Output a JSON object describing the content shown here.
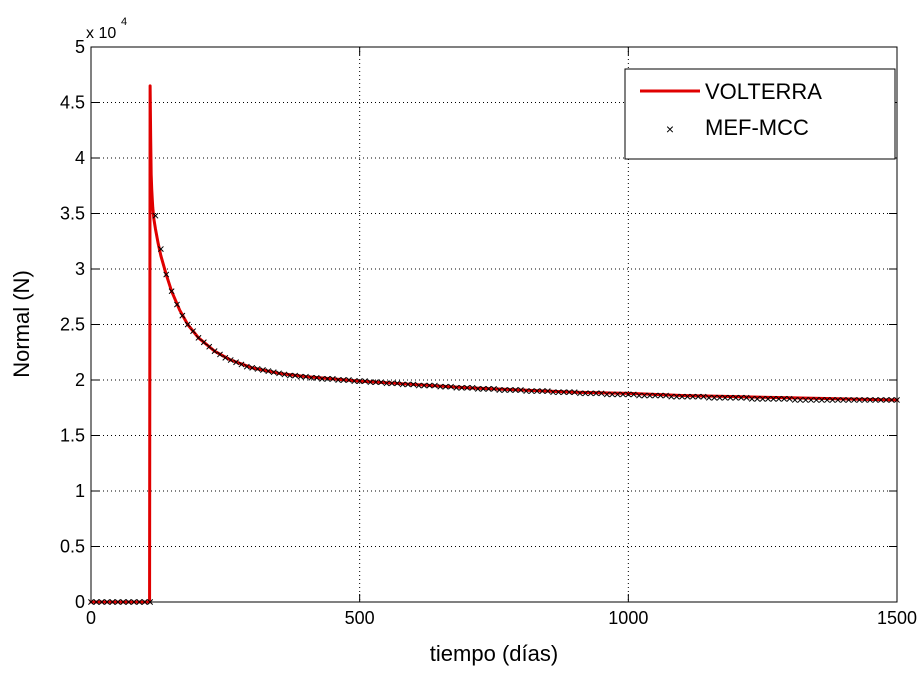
{
  "chart_data": {
    "type": "line",
    "xlabel": "tiempo (días)",
    "ylabel": "Normal (N)",
    "y_exponent": {
      "prefix": "x 10",
      "power": "4"
    },
    "xlim": [
      0,
      1500
    ],
    "ylim": [
      0,
      5
    ],
    "xticks": [
      0,
      500,
      1000,
      1500
    ],
    "yticks": [
      0,
      0.5,
      1,
      1.5,
      2,
      2.5,
      3,
      3.5,
      4,
      4.5,
      5
    ],
    "x_tick_labels": [
      "0",
      "500",
      "1000",
      "1500"
    ],
    "y_tick_labels": [
      "0",
      "0.5",
      "1",
      "1.5",
      "2",
      "2.5",
      "3",
      "3.5",
      "4",
      "4.5",
      "5"
    ],
    "grid": true,
    "legend_position": "top-right",
    "series": [
      {
        "name": "VOLTERRA",
        "style": "line",
        "color": "#e00000",
        "x": [
          0,
          109,
          110,
          111,
          112,
          113,
          114,
          115,
          117,
          120,
          125,
          130,
          140,
          150,
          165,
          180,
          200,
          230,
          260,
          300,
          350,
          400,
          450,
          500,
          600,
          700,
          800,
          900,
          1000,
          1100,
          1200,
          1300,
          1400,
          1500
        ],
        "y": [
          0,
          0,
          4.65,
          4.2,
          3.85,
          3.72,
          3.63,
          3.55,
          3.45,
          3.36,
          3.23,
          3.12,
          2.95,
          2.8,
          2.63,
          2.5,
          2.38,
          2.26,
          2.18,
          2.11,
          2.06,
          2.03,
          2.01,
          1.99,
          1.96,
          1.93,
          1.91,
          1.89,
          1.88,
          1.86,
          1.85,
          1.84,
          1.83,
          1.82
        ]
      },
      {
        "name": "MEF-MCC",
        "style": "markers",
        "marker": "x",
        "color": "#000000",
        "x": [
          0,
          10,
          20,
          30,
          40,
          50,
          60,
          70,
          80,
          90,
          100,
          110,
          120,
          130,
          140,
          150,
          160,
          170,
          180,
          190,
          200,
          210,
          220,
          230,
          240,
          250,
          260,
          270,
          280,
          290,
          300,
          310,
          320,
          330,
          340,
          350,
          360,
          370,
          380,
          390,
          400,
          410,
          420,
          430,
          440,
          450,
          460,
          470,
          480,
          490,
          500,
          510,
          520,
          530,
          540,
          550,
          560,
          570,
          580,
          590,
          600,
          610,
          620,
          630,
          640,
          650,
          660,
          670,
          680,
          690,
          700,
          710,
          720,
          730,
          740,
          750,
          760,
          770,
          780,
          790,
          800,
          810,
          820,
          830,
          840,
          850,
          860,
          870,
          880,
          890,
          900,
          910,
          920,
          930,
          940,
          950,
          960,
          970,
          980,
          990,
          1000,
          1010,
          1020,
          1030,
          1040,
          1050,
          1060,
          1070,
          1080,
          1090,
          1100,
          1110,
          1120,
          1130,
          1140,
          1150,
          1160,
          1170,
          1180,
          1190,
          1200,
          1210,
          1220,
          1230,
          1240,
          1250,
          1260,
          1270,
          1280,
          1290,
          1300,
          1310,
          1320,
          1330,
          1340,
          1350,
          1360,
          1370,
          1380,
          1390,
          1400,
          1410,
          1420,
          1430,
          1440,
          1450,
          1460,
          1470,
          1480,
          1490,
          1500
        ],
        "y": [
          0,
          0,
          0,
          0,
          0,
          0,
          0,
          0,
          0,
          0,
          0,
          0,
          3.48,
          3.18,
          2.95,
          2.8,
          2.68,
          2.58,
          2.5,
          2.44,
          2.38,
          2.34,
          2.3,
          2.26,
          2.23,
          2.2,
          2.18,
          2.16,
          2.14,
          2.12,
          2.11,
          2.1,
          2.09,
          2.08,
          2.07,
          2.06,
          2.05,
          2.04,
          2.04,
          2.03,
          2.03,
          2.02,
          2.02,
          2.01,
          2.01,
          2.01,
          2.0,
          2.0,
          2.0,
          1.99,
          1.99,
          1.99,
          1.98,
          1.98,
          1.98,
          1.97,
          1.97,
          1.97,
          1.96,
          1.96,
          1.96,
          1.95,
          1.95,
          1.95,
          1.95,
          1.94,
          1.94,
          1.94,
          1.93,
          1.93,
          1.93,
          1.93,
          1.92,
          1.92,
          1.92,
          1.92,
          1.91,
          1.91,
          1.91,
          1.91,
          1.91,
          1.9,
          1.9,
          1.9,
          1.9,
          1.9,
          1.89,
          1.89,
          1.89,
          1.89,
          1.89,
          1.88,
          1.88,
          1.88,
          1.88,
          1.88,
          1.87,
          1.87,
          1.87,
          1.87,
          1.87,
          1.87,
          1.86,
          1.86,
          1.86,
          1.86,
          1.86,
          1.86,
          1.85,
          1.85,
          1.85,
          1.85,
          1.85,
          1.85,
          1.85,
          1.84,
          1.84,
          1.84,
          1.84,
          1.84,
          1.84,
          1.84,
          1.84,
          1.83,
          1.83,
          1.83,
          1.83,
          1.83,
          1.83,
          1.83,
          1.83,
          1.82,
          1.82,
          1.82,
          1.82,
          1.82,
          1.82,
          1.82,
          1.82,
          1.82,
          1.82,
          1.82,
          1.82,
          1.82,
          1.82,
          1.82,
          1.82,
          1.82,
          1.82,
          1.82,
          1.82
        ]
      }
    ]
  }
}
